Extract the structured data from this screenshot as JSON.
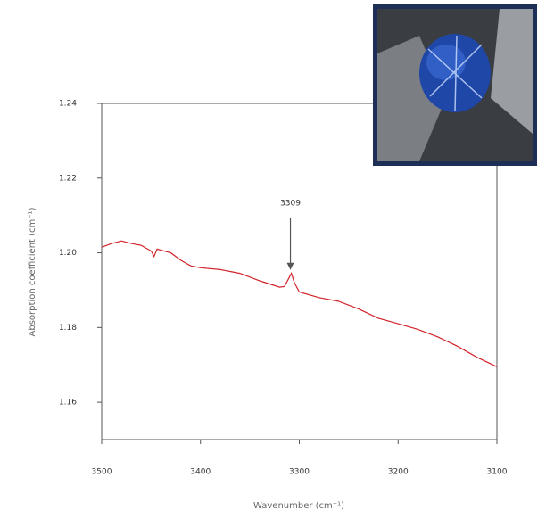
{
  "chart_data": {
    "type": "line",
    "y_label": "Absorption coefficient (cm⁻¹)",
    "x_label": "Wavenumber (cm⁻¹)",
    "annotation": 3309,
    "xlim": [
      3500,
      3100
    ],
    "xticks": [
      3500,
      3400,
      3300,
      3200,
      3100
    ],
    "ylim": [
      1.15,
      1.24
    ],
    "yticks": [
      {
        "value": 1.16,
        "label": "1.16"
      },
      {
        "value": 1.18,
        "label": "1.18"
      },
      {
        "value": 1.2,
        "label": "1.20"
      },
      {
        "value": 1.22,
        "label": "1.22"
      },
      {
        "value": 1.24,
        "label": "1.24"
      }
    ],
    "x": [
      3500,
      3490,
      3480,
      3470,
      3460,
      3450,
      3447,
      3444,
      3430,
      3420,
      3410,
      3400,
      3380,
      3360,
      3340,
      3320,
      3315,
      3310,
      3308,
      3305,
      3300,
      3280,
      3260,
      3240,
      3220,
      3200,
      3180,
      3160,
      3140,
      3120,
      3100
    ],
    "series": [
      {
        "color": "#d2232a",
        "values": [
          1.2015,
          1.2025,
          1.2032,
          1.2025,
          1.202,
          1.2005,
          1.199,
          1.201,
          1.2,
          1.198,
          1.1965,
          1.196,
          1.1955,
          1.1945,
          1.1925,
          1.1908,
          1.191,
          1.1935,
          1.1945,
          1.192,
          1.1895,
          1.188,
          1.187,
          1.185,
          1.1825,
          1.181,
          1.1795,
          1.1775,
          1.175,
          1.172,
          1.1695
        ]
      }
    ]
  }
}
